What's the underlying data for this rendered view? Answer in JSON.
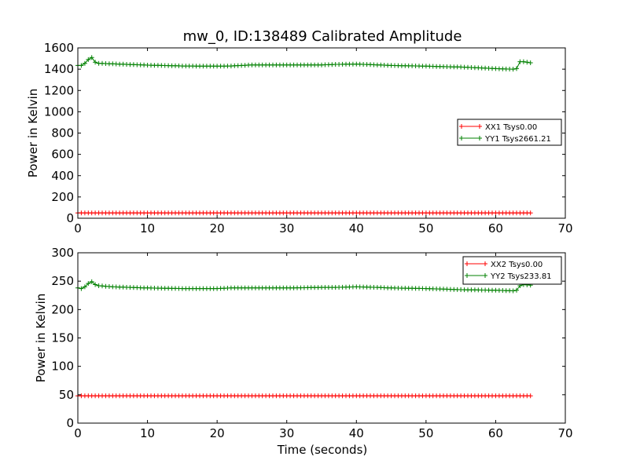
{
  "figure": {
    "title": "mw_0, ID:138489 Calibrated Amplitude",
    "xlabel": "Time (seconds)"
  },
  "chart_data": [
    {
      "type": "line",
      "title": "mw_0, ID:138489 Calibrated Amplitude",
      "xlabel": "",
      "ylabel": "Power in Kelvin",
      "xlim": [
        0,
        70
      ],
      "ylim": [
        0,
        1600
      ],
      "xticks": [
        0,
        10,
        20,
        30,
        40,
        50,
        60,
        70
      ],
      "yticks": [
        0,
        200,
        400,
        600,
        800,
        1000,
        1200,
        1400,
        1600
      ],
      "marker": "+",
      "legend_position": "center-right",
      "x_sampling": {
        "start": 0,
        "end": 65,
        "step": 0.5
      },
      "series": [
        {
          "name": "XX1 Tsys0.00",
          "color": "#ff0000",
          "points": [
            [
              0,
              50
            ],
            [
              65,
              50
            ]
          ]
        },
        {
          "name": "YY1 Tsys2661.21",
          "color": "#008000",
          "points": [
            [
              0,
              1435
            ],
            [
              0.5,
              1435
            ],
            [
              1,
              1455
            ],
            [
              1.5,
              1490
            ],
            [
              2,
              1510
            ],
            [
              2.5,
              1465
            ],
            [
              3,
              1455
            ],
            [
              5,
              1450
            ],
            [
              10,
              1438
            ],
            [
              15,
              1430
            ],
            [
              20,
              1428
            ],
            [
              22,
              1430
            ],
            [
              25,
              1440
            ],
            [
              30,
              1440
            ],
            [
              35,
              1440
            ],
            [
              37,
              1445
            ],
            [
              40,
              1448
            ],
            [
              45,
              1435
            ],
            [
              50,
              1428
            ],
            [
              55,
              1420
            ],
            [
              60,
              1405
            ],
            [
              62.5,
              1400
            ],
            [
              63,
              1405
            ],
            [
              63.5,
              1470
            ],
            [
              64,
              1470
            ],
            [
              65,
              1460
            ]
          ]
        }
      ]
    },
    {
      "type": "line",
      "title": "",
      "xlabel": "Time (seconds)",
      "ylabel": "Power in Kelvin",
      "xlim": [
        0,
        70
      ],
      "ylim": [
        0,
        300
      ],
      "xticks": [
        0,
        10,
        20,
        30,
        40,
        50,
        60,
        70
      ],
      "yticks": [
        0,
        50,
        100,
        150,
        200,
        250,
        300
      ],
      "marker": "+",
      "legend_position": "top-right",
      "x_sampling": {
        "start": 0,
        "end": 65,
        "step": 0.5
      },
      "series": [
        {
          "name": "XX2 Tsys0.00",
          "color": "#ff0000",
          "points": [
            [
              0,
              48
            ],
            [
              65,
              48
            ]
          ]
        },
        {
          "name": "YY2 Tsys233.81",
          "color": "#008000",
          "points": [
            [
              0,
              238
            ],
            [
              0.5,
              237
            ],
            [
              1,
              240
            ],
            [
              1.5,
              246
            ],
            [
              2,
              249
            ],
            [
              2.5,
              244
            ],
            [
              3,
              242
            ],
            [
              5,
              240
            ],
            [
              10,
              238
            ],
            [
              15,
              237
            ],
            [
              20,
              237
            ],
            [
              22,
              238
            ],
            [
              25,
              238
            ],
            [
              30,
              238
            ],
            [
              35,
              239
            ],
            [
              37,
              239
            ],
            [
              40,
              240
            ],
            [
              43,
              239
            ],
            [
              45,
              238
            ],
            [
              50,
              237
            ],
            [
              55,
              235
            ],
            [
              60,
              234
            ],
            [
              62.5,
              233
            ],
            [
              63,
              234
            ],
            [
              63.5,
              242
            ],
            [
              64,
              244
            ],
            [
              65,
              243
            ]
          ]
        }
      ]
    }
  ]
}
